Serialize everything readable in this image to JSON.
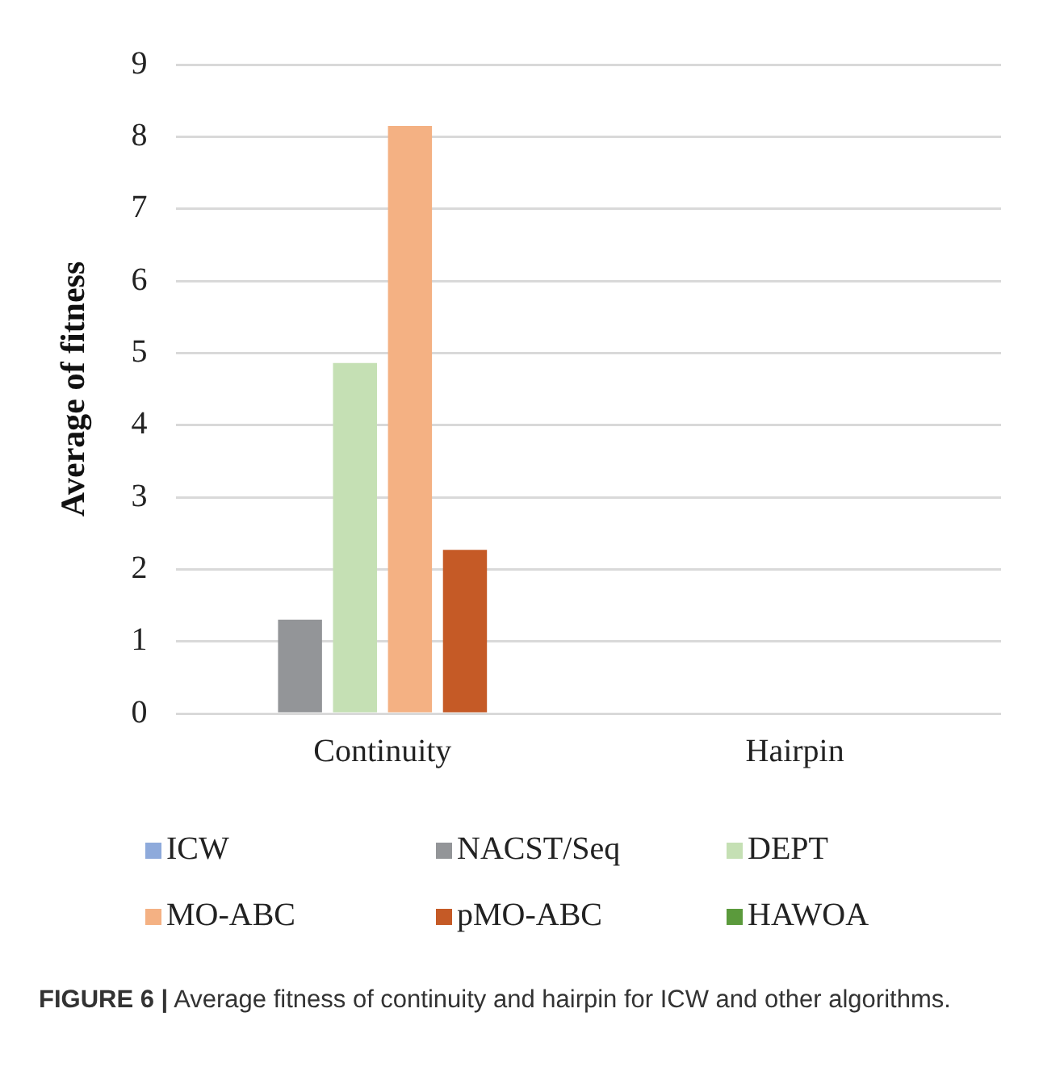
{
  "chart_data": {
    "type": "bar",
    "ylabel": "Average of fitness",
    "categories": [
      "Continuity",
      "Hairpin"
    ],
    "series": [
      {
        "name": "ICW",
        "color": "#8eaadb",
        "values": [
          0,
          0
        ]
      },
      {
        "name": "NACST/Seq",
        "color": "#939598",
        "values": [
          1.3,
          0
        ]
      },
      {
        "name": "DEPT",
        "color": "#c5e0b4",
        "values": [
          4.86,
          0
        ]
      },
      {
        "name": "MO-ABC",
        "color": "#f4b183",
        "values": [
          8.15,
          0
        ]
      },
      {
        "name": "pMO-ABC",
        "color": "#c55a26",
        "values": [
          2.27,
          0
        ]
      },
      {
        "name": "HAWOA",
        "color": "#5b9a3c",
        "values": [
          0,
          0
        ]
      }
    ],
    "ylim": [
      0,
      9
    ],
    "yticks": [
      0,
      1,
      2,
      3,
      4,
      5,
      6,
      7,
      8,
      9
    ],
    "grid": "y",
    "legend": "bottom",
    "annotations": [
      "FIGURE 6 | Average fitness of continuity and hairpin for ICW and other algorithms."
    ]
  }
}
